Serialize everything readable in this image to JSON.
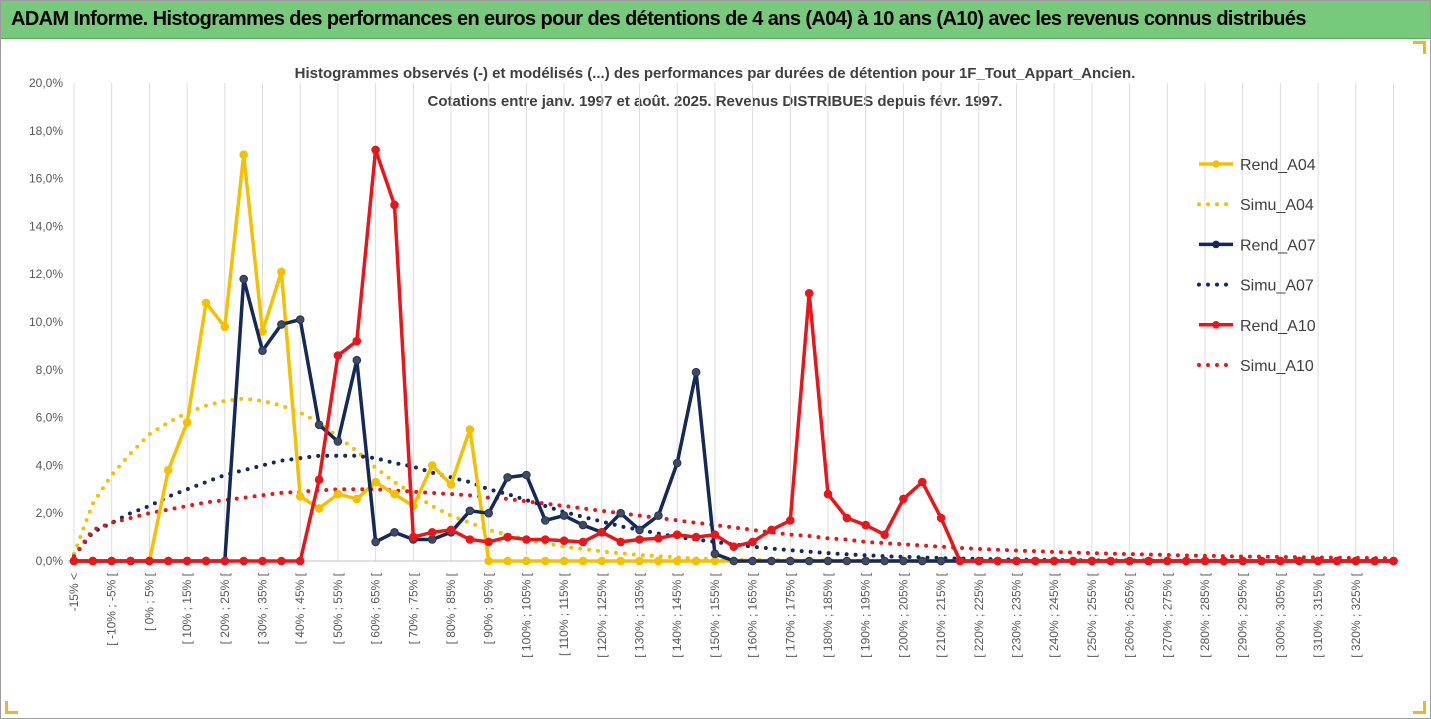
{
  "header": {
    "title": "ADAM Informe. Histogrammes des performances en euros pour des détentions de 4 ans (A04) à 10 ans (A10) avec les revenus connus distribués",
    "background": "#77c97b"
  },
  "chart_data": {
    "type": "line",
    "title_line1": "Histogrammes observés (-) et modélisés (...) des performances par durées de détention pour 1F_Tout_Appart_Ancien.",
    "title_line2": "Cotations entre janv. 1997 et août. 2025. Revenus DISTRIBUES depuis févr. 1997.",
    "ylim": [
      0,
      20
    ],
    "yticks": [
      "0,0%",
      "2,0%",
      "4,0%",
      "6,0%",
      "8,0%",
      "10,0%",
      "12,0%",
      "14,0%",
      "16,0%",
      "18,0%",
      "20,0%"
    ],
    "grid": "vertical",
    "legend_position": "right",
    "categories": [
      "-15% <",
      "[ -15% ; -10% [",
      "[ -10% ; -5% [",
      "[ -5% ; 0% [",
      "[ 0% ; 5% [",
      "[ 5% ; 10% [",
      "[ 10% ; 15% [",
      "[ 15% ; 20% [",
      "[ 20% ; 25% [",
      "[ 25% ; 30% [",
      "[ 30% ; 35% [",
      "[ 35% ; 40% [",
      "[ 40% ; 45% [",
      "[ 45% ; 50% [",
      "[ 50% ; 55% [",
      "[ 55% ; 60% [",
      "[ 60% ; 65% [",
      "[ 65% ; 70% [",
      "[ 70% ; 75% [",
      "[ 75% ; 80% [",
      "[ 80% ; 85% [",
      "[ 85% ; 90% [",
      "[ 90% ; 95% [",
      "[ 95% ; 100% [",
      "[ 100% ; 105% [",
      "[ 105% ; 110% [",
      "[ 110% ; 115% [",
      "[ 115% ; 120% [",
      "[ 120% ; 125% [",
      "[ 125% ; 130% [",
      "[ 130% ; 135% [",
      "[ 135% ; 140% [",
      "[ 140% ; 145% [",
      "[ 145% ; 150% [",
      "[ 150% ; 155% [",
      "[ 155% ; 160% [",
      "[ 160% ; 165% [",
      "[ 165% ; 170% [",
      "[ 170% ; 175% [",
      "[ 175% ; 180% [",
      "[ 180% ; 185% [",
      "[ 185% ; 190% [",
      "[ 190% ; 195% [",
      "[ 195% ; 200% [",
      "[ 200% ; 205% [",
      "[ 205% ; 210% [",
      "[ 210% ; 215% [",
      "[ 215% ; 220% [",
      "[ 220% ; 225% [",
      "[ 225% ; 230% [",
      "[ 230% ; 235% [",
      "[ 235% ; 240% [",
      "[ 240% ; 245% [",
      "[ 245% ; 250% [",
      "[ 250% ; 255% [",
      "[ 255% ; 260% [",
      "[ 260% ; 265% [",
      "[ 265% ; 270% [",
      "[ 270% ; 275% [",
      "[ 275% ; 280% [",
      "[ 280% ; 285% [",
      "[ 285% ; 290% [",
      "[ 290% ; 295% [",
      "[ 295% ; 300% [",
      "[ 300% ; 305% [",
      "[ 305% ; 310% [",
      "[ 310% ; 315% [",
      "[ 315% ; 320% [",
      "[ 320% ; 325% [",
      "[ 325% ; 330% [",
      "[ 330% ; 335% ["
    ],
    "shown_category_labels": [
      "-15% <",
      "[ -10% ; -5% [",
      "[ 0% ; 5% [",
      "[ 10% ; 15% [",
      "[ 20% ; 25% [",
      "[ 30% ; 35% [",
      "[ 40% ; 45% [",
      "[ 50% ; 55% [",
      "[ 60% ; 65% [",
      "[ 70% ; 75% [",
      "[ 80% ; 85% [",
      "[ 90% ; 95% [",
      "[ 100% ; 105% [",
      "[ 110% ; 115% [",
      "[ 120% ; 125% [",
      "[ 130% ; 135% [",
      "[ 140% ; 145% [",
      "[ 150% ; 155% [",
      "[ 160% ; 165% [",
      "[ 170% ; 175% [",
      "[ 180% ; 185% [",
      "[ 190% ; 195% [",
      "[ 200% ; 205% [",
      "[ 210% ; 215% [",
      "[ 220% ; 225% [",
      "[ 230% ; 235% [",
      "[ 240% ; 245% [",
      "[ 250% ; 255% [",
      "[ 260% ; 265% [",
      "[ 270% ; 275% [",
      "[ 280% ; 285% [",
      "[ 290% ; 295% [",
      "[ 300% ; 305% [",
      "[ 310% ; 315% [",
      "[ 320% ; 325% ["
    ],
    "series": [
      {
        "name": "Rend_A04",
        "color": "#f5c000",
        "style": "solid",
        "markers": true,
        "values": [
          0,
          0,
          0,
          0,
          0,
          3.8,
          5.8,
          10.8,
          9.8,
          17.0,
          9.6,
          12.1,
          2.7,
          2.2,
          2.8,
          2.6,
          3.3,
          2.8,
          2.3,
          4.0,
          3.2,
          5.5,
          0,
          0,
          0,
          0,
          0,
          0,
          0,
          0,
          0,
          0,
          0,
          0,
          0,
          0,
          0,
          0,
          0,
          0,
          0,
          0,
          0,
          0,
          0,
          0,
          0,
          0,
          0,
          0,
          0,
          0,
          0,
          0,
          0,
          0,
          0,
          0,
          0,
          0,
          0,
          0,
          0,
          0,
          0,
          0,
          0,
          0,
          0,
          0,
          0
        ]
      },
      {
        "name": "Simu_A04",
        "color": "#f5c000",
        "style": "dotted",
        "markers": false,
        "values": [
          0.3,
          2.4,
          3.6,
          4.5,
          5.3,
          5.8,
          6.2,
          6.5,
          6.7,
          6.8,
          6.7,
          6.5,
          6.2,
          5.8,
          5.2,
          4.6,
          3.9,
          3.3,
          2.8,
          2.3,
          1.9,
          1.6,
          1.3,
          1.1,
          0.9,
          0.75,
          0.6,
          0.5,
          0.4,
          0.32,
          0.25,
          0.2,
          0.15,
          0.1,
          0.08,
          0.06,
          0.05,
          0.04,
          0.03,
          0.02,
          0.02,
          0.01,
          0.01,
          0,
          0,
          0,
          0,
          0,
          0,
          0,
          0,
          0,
          0,
          0,
          0,
          0,
          0,
          0,
          0,
          0,
          0,
          0,
          0,
          0,
          0,
          0,
          0,
          0,
          0,
          0,
          0
        ]
      },
      {
        "name": "Rend_A07",
        "color": "#14285a",
        "style": "solid",
        "markers": true,
        "values": [
          0,
          0,
          0,
          0,
          0,
          0,
          0,
          0,
          0,
          11.8,
          8.8,
          9.9,
          10.1,
          5.7,
          5.0,
          8.4,
          0.8,
          1.2,
          0.9,
          0.9,
          1.2,
          2.1,
          2.0,
          3.5,
          3.6,
          1.7,
          1.9,
          1.5,
          1.2,
          2.0,
          1.3,
          1.9,
          4.1,
          7.9,
          0.3,
          0,
          0,
          0,
          0,
          0,
          0,
          0,
          0,
          0,
          0,
          0,
          0,
          0,
          0,
          0,
          0,
          0,
          0,
          0,
          0,
          0,
          0,
          0,
          0,
          0,
          0,
          0,
          0,
          0,
          0,
          0,
          0,
          0,
          0,
          0,
          0
        ]
      },
      {
        "name": "Simu_A07",
        "color": "#14285a",
        "style": "dotted",
        "markers": false,
        "values": [
          0.2,
          1.2,
          1.6,
          2.0,
          2.3,
          2.7,
          3.0,
          3.3,
          3.6,
          3.8,
          4.0,
          4.2,
          4.3,
          4.4,
          4.4,
          4.4,
          4.3,
          4.1,
          3.95,
          3.7,
          3.5,
          3.3,
          3.0,
          2.8,
          2.55,
          2.3,
          2.05,
          1.85,
          1.65,
          1.45,
          1.3,
          1.15,
          1.0,
          0.9,
          0.8,
          0.7,
          0.6,
          0.52,
          0.45,
          0.39,
          0.33,
          0.28,
          0.24,
          0.2,
          0.17,
          0.15,
          0.12,
          0.1,
          0.09,
          0.07,
          0.06,
          0.05,
          0.04,
          0.03,
          0.03,
          0.02,
          0.02,
          0.02,
          0.01,
          0.01,
          0.01,
          0.01,
          0,
          0,
          0,
          0,
          0,
          0,
          0,
          0,
          0
        ]
      },
      {
        "name": "Rend_A10",
        "color": "#e8161b",
        "style": "solid",
        "markers": true,
        "values": [
          0,
          0,
          0,
          0,
          0,
          0,
          0,
          0,
          0,
          0,
          0,
          0,
          0,
          3.4,
          8.6,
          9.2,
          17.2,
          14.9,
          1.0,
          1.2,
          1.3,
          0.9,
          0.8,
          1.0,
          0.9,
          0.9,
          0.85,
          0.8,
          1.2,
          0.8,
          0.9,
          0.95,
          1.1,
          1.0,
          1.1,
          0.6,
          0.8,
          1.3,
          1.7,
          11.2,
          2.8,
          1.8,
          1.5,
          1.1,
          2.6,
          3.3,
          1.8,
          0,
          0,
          0,
          0,
          0,
          0,
          0,
          0,
          0,
          0,
          0,
          0,
          0,
          0,
          0,
          0,
          0,
          0,
          0,
          0,
          0,
          0,
          0,
          0
        ]
      },
      {
        "name": "Simu_A10",
        "color": "#e8161b",
        "style": "dotted",
        "markers": false,
        "values": [
          0.2,
          1.3,
          1.6,
          1.8,
          2.0,
          2.15,
          2.3,
          2.45,
          2.55,
          2.65,
          2.75,
          2.85,
          2.9,
          2.95,
          3.0,
          3.0,
          3.0,
          2.95,
          2.9,
          2.85,
          2.8,
          2.75,
          2.65,
          2.6,
          2.5,
          2.4,
          2.3,
          2.2,
          2.1,
          2.0,
          1.9,
          1.8,
          1.7,
          1.6,
          1.5,
          1.4,
          1.3,
          1.2,
          1.1,
          1.05,
          0.95,
          0.9,
          0.8,
          0.75,
          0.7,
          0.65,
          0.6,
          0.55,
          0.5,
          0.47,
          0.44,
          0.41,
          0.38,
          0.35,
          0.33,
          0.31,
          0.29,
          0.27,
          0.25,
          0.23,
          0.22,
          0.2,
          0.19,
          0.18,
          0.17,
          0.16,
          0.15,
          0.14,
          0.13,
          0.12,
          0.11
        ]
      }
    ]
  }
}
